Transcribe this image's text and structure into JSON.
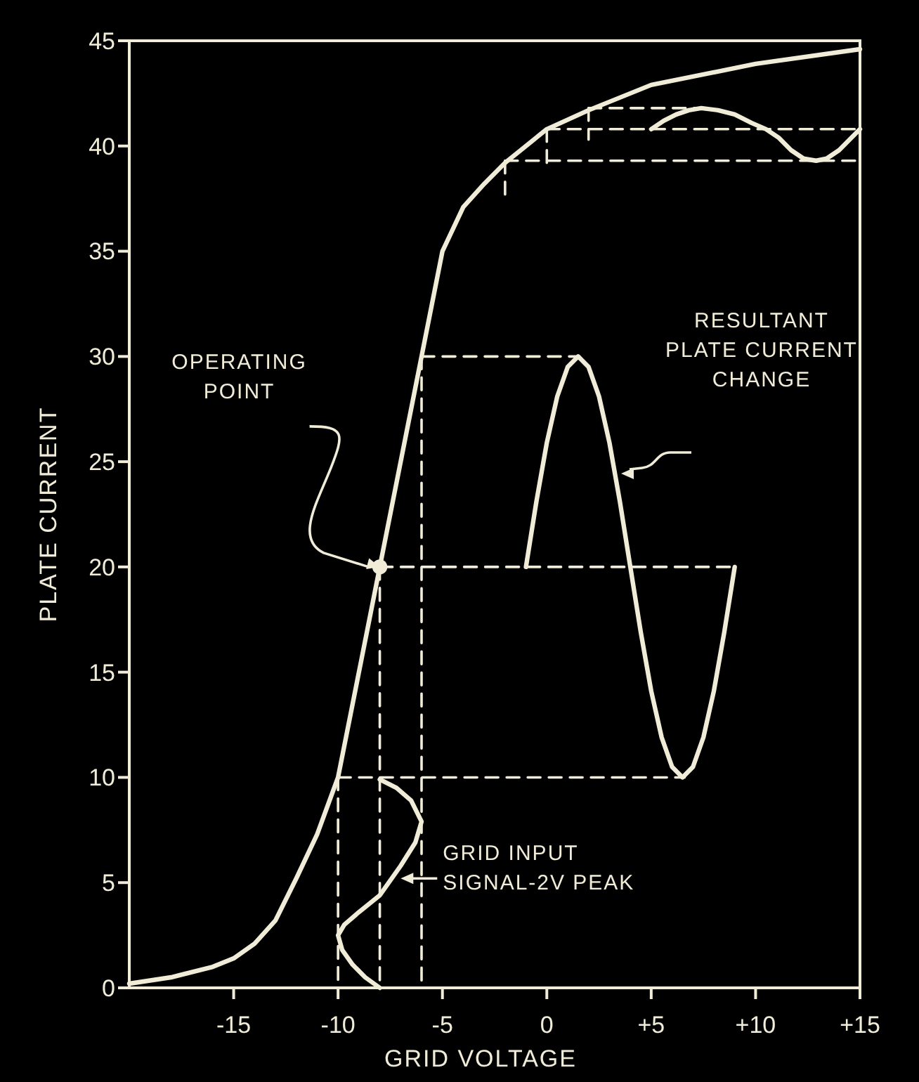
{
  "chart_data": {
    "type": "line",
    "xlabel": "GRID VOLTAGE",
    "ylabel": "PLATE CURRENT",
    "xlim": [
      -20,
      15
    ],
    "ylim": [
      0,
      45
    ],
    "xticks": [
      -15,
      -10,
      -5,
      0,
      {
        "value": 5,
        "label": "+5"
      },
      {
        "value": 10,
        "label": "+10"
      },
      {
        "value": 15,
        "label": "+15"
      }
    ],
    "yticks": [
      0,
      5,
      10,
      15,
      20,
      25,
      30,
      35,
      40,
      45
    ],
    "grid": false,
    "marker": "none",
    "line_style": "solid",
    "series": [
      {
        "color": "#f0ecd8",
        "x": [
          -20,
          -18,
          -16,
          -15,
          -14,
          -13,
          -12,
          -11,
          -10,
          -9,
          -8,
          -7,
          -6,
          -5,
          -4,
          -3,
          -2,
          0,
          2,
          5,
          10,
          15
        ],
        "values": [
          0.2,
          0.5,
          1,
          1.4,
          2.1,
          3.2,
          5.2,
          7.3,
          10,
          15,
          20,
          25,
          30,
          35,
          37.1,
          38.2,
          39.2,
          40.8,
          41.7,
          42.9,
          43.9,
          44.6
        ]
      },
      {
        "type": "line",
        "color": "#f0ecd8",
        "x": [
          -1,
          -0.5,
          0,
          0.5,
          1,
          1.5,
          2,
          2.5,
          3,
          3.5,
          4,
          4.5,
          5,
          5.5,
          6,
          6.5,
          7,
          7.5,
          8,
          8.5,
          9
        ],
        "values": [
          20,
          23.1,
          25.9,
          28.1,
          29.5,
          30,
          29.5,
          28.1,
          25.9,
          23.1,
          20,
          16.9,
          14.1,
          11.9,
          10.5,
          10,
          10.5,
          11.9,
          14.1,
          16.9,
          20
        ]
      },
      {
        "type": "line",
        "color": "#f0ecd8",
        "x": [
          5,
          5.6,
          6.2,
          6.8,
          7.4,
          8.2,
          9,
          9.8,
          10.5,
          11.1,
          11.7,
          12.3,
          12.9,
          13.4,
          14,
          14.5,
          15
        ],
        "values": [
          40.8,
          41.2,
          41.5,
          41.7,
          41.8,
          41.7,
          41.5,
          41.1,
          40.8,
          40.4,
          39.8,
          39.4,
          39.3,
          39.4,
          39.8,
          40.3,
          40.8
        ]
      },
      {
        "type": "line",
        "color": "#f0ecd8",
        "x": [
          -8,
          -7.2,
          -6.5,
          -6,
          -6.3,
          -7,
          -8,
          -9,
          -9.7,
          -10,
          -9.8,
          -9.3,
          -8.7,
          -8
        ],
        "values": [
          9.9,
          9.5,
          8.9,
          7.9,
          6.9,
          5.8,
          4.4,
          3.6,
          3,
          2.5,
          1.8,
          1.1,
          0.5,
          0
        ]
      },
      {
        "type": "line",
        "color": "#f0ecd8",
        "line_style": "dashed",
        "x": [
          -6,
          1.5
        ],
        "values": [
          30,
          30
        ]
      },
      {
        "type": "line",
        "color": "#f0ecd8",
        "line_style": "dashed",
        "x": [
          -8,
          9
        ],
        "values": [
          20,
          20
        ]
      },
      {
        "type": "line",
        "color": "#f0ecd8",
        "line_style": "dashed",
        "x": [
          -10,
          6.6
        ],
        "values": [
          10,
          10
        ]
      },
      {
        "type": "line",
        "color": "#f0ecd8",
        "line_style": "dashed",
        "x": [
          -10,
          -10
        ],
        "values": [
          10,
          0
        ]
      },
      {
        "type": "line",
        "color": "#f0ecd8",
        "line_style": "dashed",
        "x": [
          -8,
          -8
        ],
        "values": [
          20,
          0
        ]
      },
      {
        "type": "line",
        "color": "#f0ecd8",
        "line_style": "dashed",
        "x": [
          -6,
          -6
        ],
        "values": [
          30,
          0
        ]
      },
      {
        "type": "line",
        "color": "#f0ecd8",
        "line_style": "dashed",
        "x": [
          2,
          7.4
        ],
        "values": [
          41.8,
          41.8
        ]
      },
      {
        "type": "line",
        "color": "#f0ecd8",
        "line_style": "dashed",
        "x": [
          2,
          2
        ],
        "values": [
          41.8,
          40.3
        ]
      },
      {
        "type": "line",
        "color": "#f0ecd8",
        "line_style": "dashed",
        "x": [
          0,
          15
        ],
        "values": [
          40.8,
          40.8
        ]
      },
      {
        "type": "line",
        "color": "#f0ecd8",
        "line_style": "dashed",
        "x": [
          0,
          0
        ],
        "values": [
          40.8,
          39.2
        ]
      },
      {
        "type": "line",
        "color": "#f0ecd8",
        "line_style": "dashed",
        "x": [
          -2,
          15
        ],
        "values": [
          39.3,
          39.3
        ]
      },
      {
        "type": "line",
        "color": "#f0ecd8",
        "line_style": "dashed",
        "x": [
          -2,
          -2
        ],
        "values": [
          39.3,
          37.7
        ]
      },
      {
        "type": "scatter",
        "color": "#f0ecd8",
        "marker": "circle",
        "x": [
          -8
        ],
        "values": [
          20
        ]
      }
    ],
    "annotations": [
      {
        "text": "OPERATING\nPOINT",
        "x": -8,
        "y": 20
      },
      "RESULTANT\nPLATE CURRENT\nCHANGE",
      {
        "text": "GRID INPUT\nSIGNAL-2V PEAK",
        "x": -7,
        "y": 5.2
      }
    ]
  }
}
